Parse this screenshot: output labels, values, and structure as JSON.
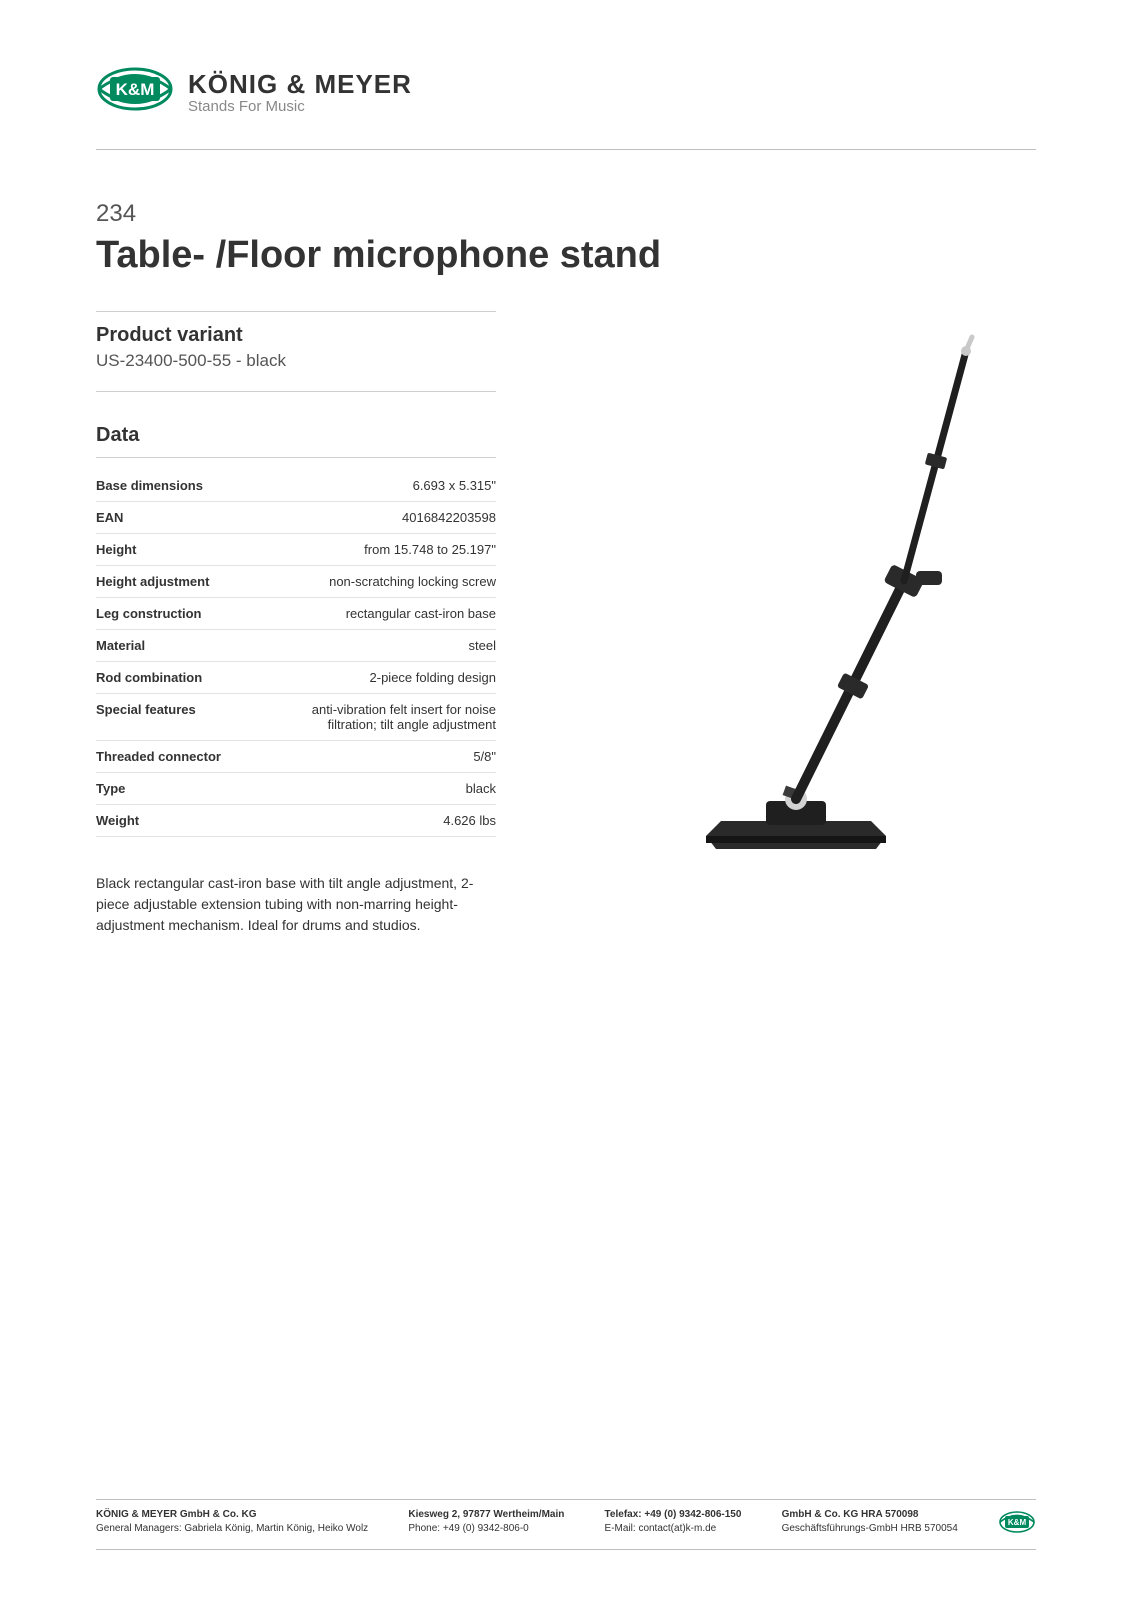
{
  "brand": {
    "name": "KÖNIG & MEYER",
    "tagline": "Stands For Music",
    "badge_text": "K&M",
    "accent_color": "#008a5e",
    "text_color": "#333333"
  },
  "product": {
    "code": "234",
    "title": "Table- /Floor microphone stand"
  },
  "variant": {
    "heading": "Product variant",
    "value": "US-23400-500-55 - black"
  },
  "data_section": {
    "heading": "Data",
    "rows": [
      {
        "label": "Base dimensions",
        "value": "6.693 x 5.315\""
      },
      {
        "label": "EAN",
        "value": "4016842203598"
      },
      {
        "label": "Height",
        "value": "from 15.748 to 25.197\""
      },
      {
        "label": "Height adjustment",
        "value": "non-scratching locking screw"
      },
      {
        "label": "Leg construction",
        "value": "rectangular cast-iron base"
      },
      {
        "label": "Material",
        "value": "steel"
      },
      {
        "label": "Rod combination",
        "value": "2-piece folding design"
      },
      {
        "label": "Special features",
        "value": "anti-vibration felt insert for noise filtration; tilt angle adjustment"
      },
      {
        "label": "Threaded connector",
        "value": "5/8\""
      },
      {
        "label": "Type",
        "value": "black"
      },
      {
        "label": "Weight",
        "value": "4.626 lbs"
      }
    ]
  },
  "description": "Black rectangular cast-iron base with tilt angle adjustment, 2-piece adjustable extension tubing with non-marring height-adjustment mechanism. Ideal for drums and studios.",
  "product_image": {
    "base_color": "#2a2a2a",
    "tube_color": "#1f1f1f",
    "clamp_color": "#3a3a3a",
    "tip_color": "#c9c9c9",
    "joint_color": "#d2d2d2"
  },
  "footer": {
    "col1_line1": "KÖNIG & MEYER GmbH & Co. KG",
    "col1_line2": "General Managers: Gabriela König, Martin König, Heiko Wolz",
    "col2_line1": "Kiesweg 2, 97877 Wertheim/Main",
    "col2_line2": "Phone:   +49 (0) 9342-806-0",
    "col3_line1": "Telefax: +49 (0) 9342-806-150",
    "col3_line2": "E-Mail: contact(at)k-m.de",
    "col4_line1": "GmbH & Co. KG HRA 570098",
    "col4_line2": "Geschäftsführungs-GmbH HRB 570054"
  }
}
